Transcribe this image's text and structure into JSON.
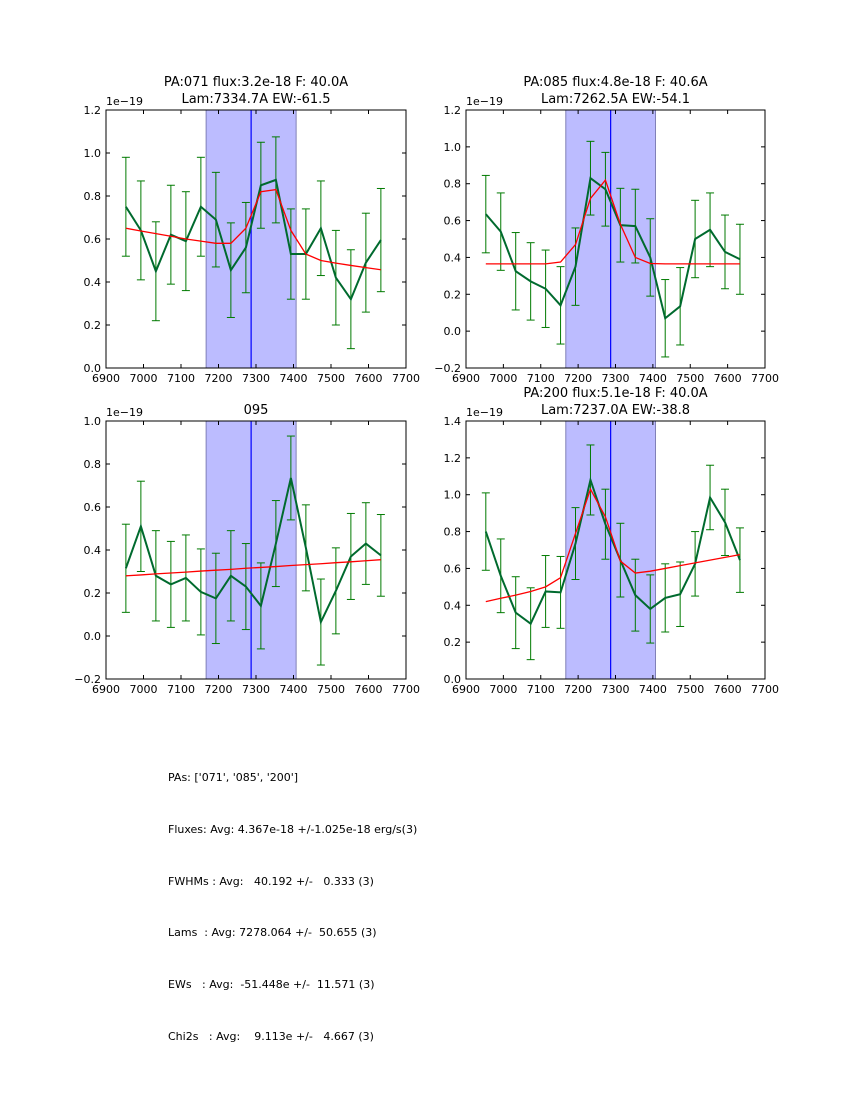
{
  "chart_data": [
    {
      "type": "line",
      "title": "PA:071 flux:3.2e-18 F: 40.0A\nLam:7334.7A EW:-61.5",
      "xlabel": "",
      "ylabel": "",
      "offset_label": "1e−19",
      "xlim": [
        6900,
        7700
      ],
      "ylim": [
        0.0,
        1.2
      ],
      "xticks": [
        6900,
        7000,
        7100,
        7200,
        7300,
        7400,
        7500,
        7600,
        7700
      ],
      "yticks": [
        0.0,
        0.2,
        0.4,
        0.6,
        0.8,
        1.0,
        1.2
      ],
      "grid": false,
      "band": [
        7167,
        7407
      ],
      "center_line": 7287,
      "x": [
        6953,
        6993,
        7033,
        7073,
        7113,
        7153,
        7193,
        7233,
        7273,
        7313,
        7353,
        7393,
        7433,
        7473,
        7513,
        7553,
        7593,
        7633
      ],
      "series": [
        {
          "name": "data",
          "values": [
            0.75,
            0.64,
            0.45,
            0.62,
            0.59,
            0.75,
            0.69,
            0.455,
            0.56,
            0.85,
            0.875,
            0.53,
            0.53,
            0.65,
            0.42,
            0.32,
            0.49,
            0.595
          ],
          "errors": [
            0.23,
            0.23,
            0.23,
            0.23,
            0.23,
            0.23,
            0.22,
            0.22,
            0.21,
            0.2,
            0.2,
            0.21,
            0.21,
            0.22,
            0.22,
            0.23,
            0.23,
            0.24
          ]
        },
        {
          "name": "model",
          "values": [
            0.65,
            0.637,
            0.625,
            0.613,
            0.6,
            0.59,
            0.58,
            0.58,
            0.65,
            0.82,
            0.83,
            0.64,
            0.53,
            0.5,
            0.488,
            0.477,
            0.467,
            0.457
          ]
        }
      ]
    },
    {
      "type": "line",
      "title": "PA:085 flux:4.8e-18 F: 40.6A\nLam:7262.5A EW:-54.1",
      "xlabel": "",
      "ylabel": "",
      "offset_label": "1e−19",
      "xlim": [
        6900,
        7700
      ],
      "ylim": [
        -0.2,
        1.2
      ],
      "xticks": [
        6900,
        7000,
        7100,
        7200,
        7300,
        7400,
        7500,
        7600,
        7700
      ],
      "yticks": [
        -0.2,
        0.0,
        0.2,
        0.4,
        0.6,
        0.8,
        1.0,
        1.2
      ],
      "grid": false,
      "band": [
        7167,
        7407
      ],
      "center_line": 7287,
      "x": [
        6953,
        6993,
        7033,
        7073,
        7113,
        7153,
        7193,
        7233,
        7273,
        7313,
        7353,
        7393,
        7433,
        7473,
        7513,
        7553,
        7593,
        7633
      ],
      "series": [
        {
          "name": "data",
          "values": [
            0.635,
            0.54,
            0.325,
            0.27,
            0.23,
            0.14,
            0.35,
            0.83,
            0.77,
            0.575,
            0.57,
            0.4,
            0.07,
            0.135,
            0.5,
            0.55,
            0.43,
            0.39
          ],
          "errors": [
            0.21,
            0.21,
            0.21,
            0.21,
            0.21,
            0.21,
            0.21,
            0.2,
            0.2,
            0.2,
            0.2,
            0.21,
            0.21,
            0.21,
            0.21,
            0.2,
            0.2,
            0.19
          ]
        },
        {
          "name": "model",
          "values": [
            0.365,
            0.365,
            0.365,
            0.365,
            0.365,
            0.375,
            0.47,
            0.72,
            0.82,
            0.58,
            0.4,
            0.367,
            0.365,
            0.365,
            0.365,
            0.365,
            0.365,
            0.365
          ]
        }
      ]
    },
    {
      "type": "line",
      "title": "095",
      "xlabel": "",
      "ylabel": "",
      "offset_label": "1e−19",
      "xlim": [
        6900,
        7700
      ],
      "ylim": [
        -0.2,
        1.0
      ],
      "xticks": [
        6900,
        7000,
        7100,
        7200,
        7300,
        7400,
        7500,
        7600,
        7700
      ],
      "yticks": [
        -0.2,
        0.0,
        0.2,
        0.4,
        0.6,
        0.8,
        1.0
      ],
      "grid": false,
      "band": [
        7167,
        7407
      ],
      "center_line": 7287,
      "x": [
        6953,
        6993,
        7033,
        7073,
        7113,
        7153,
        7193,
        7233,
        7273,
        7313,
        7353,
        7393,
        7433,
        7473,
        7513,
        7553,
        7593,
        7633
      ],
      "series": [
        {
          "name": "data",
          "values": [
            0.315,
            0.51,
            0.28,
            0.24,
            0.27,
            0.205,
            0.175,
            0.28,
            0.23,
            0.14,
            0.43,
            0.735,
            0.41,
            0.065,
            0.21,
            0.37,
            0.43,
            0.375
          ],
          "errors": [
            0.205,
            0.21,
            0.21,
            0.2,
            0.2,
            0.2,
            0.21,
            0.21,
            0.2,
            0.2,
            0.2,
            0.195,
            0.2,
            0.2,
            0.2,
            0.2,
            0.19,
            0.19
          ]
        },
        {
          "name": "model",
          "values": [
            0.28,
            0.284,
            0.289,
            0.293,
            0.297,
            0.302,
            0.306,
            0.31,
            0.315,
            0.319,
            0.323,
            0.328,
            0.332,
            0.336,
            0.341,
            0.345,
            0.35,
            0.355
          ]
        }
      ]
    },
    {
      "type": "line",
      "title": "PA:200 flux:5.1e-18 F: 40.0A\nLam:7237.0A EW:-38.8",
      "xlabel": "",
      "ylabel": "",
      "offset_label": "1e−19",
      "xlim": [
        6900,
        7700
      ],
      "ylim": [
        0.0,
        1.4
      ],
      "xticks": [
        6900,
        7000,
        7100,
        7200,
        7300,
        7400,
        7500,
        7600,
        7700
      ],
      "yticks": [
        0.0,
        0.2,
        0.4,
        0.6,
        0.8,
        1.0,
        1.2,
        1.4
      ],
      "grid": false,
      "band": [
        7167,
        7407
      ],
      "center_line": 7287,
      "x": [
        6953,
        6993,
        7033,
        7073,
        7113,
        7153,
        7193,
        7233,
        7273,
        7313,
        7353,
        7393,
        7433,
        7473,
        7513,
        7553,
        7593,
        7633
      ],
      "series": [
        {
          "name": "data",
          "values": [
            0.8,
            0.56,
            0.36,
            0.3,
            0.475,
            0.47,
            0.735,
            1.08,
            0.84,
            0.645,
            0.455,
            0.38,
            0.44,
            0.46,
            0.625,
            0.985,
            0.85,
            0.645
          ],
          "errors": [
            0.21,
            0.2,
            0.195,
            0.195,
            0.195,
            0.195,
            0.195,
            0.19,
            0.19,
            0.2,
            0.195,
            0.185,
            0.185,
            0.175,
            0.175,
            0.175,
            0.18,
            0.175
          ]
        },
        {
          "name": "model",
          "values": [
            0.42,
            0.438,
            0.455,
            0.475,
            0.5,
            0.55,
            0.79,
            1.03,
            0.88,
            0.64,
            0.575,
            0.585,
            0.6,
            0.615,
            0.63,
            0.645,
            0.66,
            0.675
          ]
        }
      ]
    }
  ],
  "colors": {
    "data_line": "#006a2e",
    "error_bars": "#007a00",
    "model_line": "#ff0000",
    "band_fill": "#bcbcff",
    "band_edge": "#8080b8",
    "center_line": "#0000ff"
  },
  "summary": {
    "lines": [
      "PAs: ['071', '085', '200']",
      "Fluxes: Avg: 4.367e-18 +/-1.025e-18 erg/s(3)",
      "FWHMs : Avg:   40.192 +/-   0.333 (3)",
      "Lams  : Avg: 7278.064 +/-  50.655 (3)",
      "EWs   : Avg:  -51.448e +/-  11.571 (3)",
      "Chi2s   : Avg:    9.113e +/-   4.667 (3)"
    ]
  }
}
